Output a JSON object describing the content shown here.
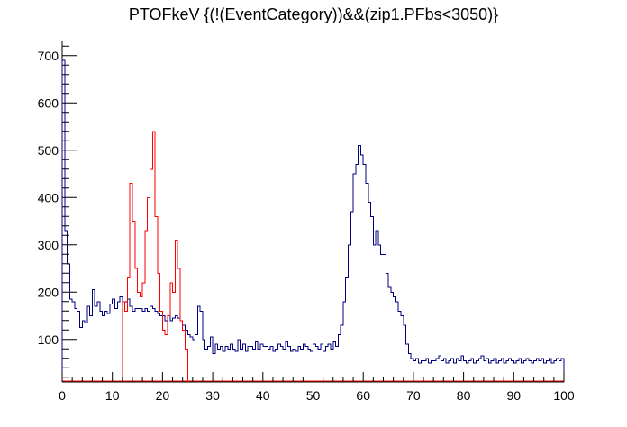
{
  "chart_data": {
    "type": "histogram",
    "title": "PTOFkeV {(!(EventCategory))&&(zip1.PFbs<3050)}",
    "xlabel": "",
    "ylabel": "",
    "xlim": [
      0,
      100
    ],
    "ylim": [
      10,
      730
    ],
    "grid": false,
    "legend": "none",
    "x_ticks": [
      0,
      10,
      20,
      30,
      40,
      50,
      60,
      70,
      80,
      90,
      100
    ],
    "y_ticks": [
      100,
      200,
      300,
      400,
      500,
      600,
      700
    ],
    "series": [
      {
        "color": "#000080",
        "x": [
          0.25,
          0.75,
          1.25,
          1.75,
          2.25,
          2.75,
          3.25,
          3.75,
          4.25,
          4.75,
          5.25,
          5.75,
          6.25,
          6.75,
          7.25,
          7.75,
          8.25,
          8.75,
          9.25,
          9.75,
          10.25,
          10.75,
          11.25,
          11.75,
          12.25,
          12.75,
          13.25,
          13.75,
          14.25,
          14.75,
          15.25,
          15.75,
          16.25,
          16.75,
          17.25,
          17.75,
          18.25,
          18.75,
          19.25,
          19.75,
          20.25,
          20.75,
          21.25,
          21.75,
          22.25,
          22.75,
          23.25,
          23.75,
          24.25,
          24.75,
          25.25,
          25.75,
          26.25,
          26.75,
          27.25,
          27.75,
          28.25,
          28.75,
          29.25,
          29.75,
          30.25,
          30.75,
          31.25,
          31.75,
          32.25,
          32.75,
          33.25,
          33.75,
          34.25,
          34.75,
          35.25,
          35.75,
          36.25,
          36.75,
          37.25,
          37.75,
          38.25,
          38.75,
          39.25,
          39.75,
          40.25,
          40.75,
          41.25,
          41.75,
          42.25,
          42.75,
          43.25,
          43.75,
          44.25,
          44.75,
          45.25,
          45.75,
          46.25,
          46.75,
          47.25,
          47.75,
          48.25,
          48.75,
          49.25,
          49.75,
          50.25,
          50.75,
          51.25,
          51.75,
          52.25,
          52.75,
          53.25,
          53.75,
          54.25,
          54.75,
          55.25,
          55.75,
          56.25,
          56.75,
          57.25,
          57.75,
          58.25,
          58.75,
          59.25,
          59.75,
          60.25,
          60.75,
          61.25,
          61.75,
          62.25,
          62.75,
          63.25,
          63.75,
          64.25,
          64.75,
          65.25,
          65.75,
          66.25,
          66.75,
          67.25,
          67.75,
          68.25,
          68.75,
          69.25,
          69.75,
          70.25,
          70.75,
          71.25,
          71.75,
          72.25,
          72.75,
          73.25,
          73.75,
          74.25,
          74.75,
          75.25,
          75.75,
          76.25,
          76.75,
          77.25,
          77.75,
          78.25,
          78.75,
          79.25,
          79.75,
          80.25,
          80.75,
          81.25,
          81.75,
          82.25,
          82.75,
          83.25,
          83.75,
          84.25,
          84.75,
          85.25,
          85.75,
          86.25,
          86.75,
          87.25,
          87.75,
          88.25,
          88.75,
          89.25,
          89.75,
          90.25,
          90.75,
          91.25,
          91.75,
          92.25,
          92.75,
          93.25,
          93.75,
          94.25,
          94.75,
          95.25,
          95.75,
          96.25,
          96.75,
          97.25,
          97.75,
          98.25,
          98.75,
          99.25,
          99.75
        ],
        "values": [
          690,
          330,
          260,
          185,
          180,
          165,
          160,
          125,
          140,
          135,
          170,
          150,
          205,
          170,
          180,
          160,
          150,
          160,
          155,
          175,
          185,
          165,
          180,
          190,
          175,
          180,
          185,
          170,
          160,
          165,
          165,
          165,
          160,
          165,
          160,
          170,
          165,
          160,
          155,
          150,
          150,
          140,
          150,
          140,
          145,
          150,
          145,
          140,
          130,
          120,
          110,
          105,
          100,
          110,
          170,
          160,
          100,
          80,
          85,
          105,
          70,
          90,
          80,
          85,
          75,
          85,
          80,
          90,
          80,
          75,
          100,
          80,
          90,
          75,
          85,
          85,
          80,
          95,
          80,
          90,
          85,
          85,
          80,
          85,
          75,
          80,
          90,
          85,
          80,
          95,
          85,
          75,
          80,
          75,
          85,
          80,
          90,
          85,
          80,
          75,
          90,
          85,
          80,
          90,
          75,
          85,
          90,
          80,
          95,
          85,
          110,
          130,
          180,
          230,
          300,
          370,
          450,
          470,
          510,
          490,
          470,
          430,
          390,
          360,
          300,
          330,
          300,
          280,
          280,
          240,
          210,
          200,
          190,
          180,
          160,
          150,
          130,
          90,
          70,
          60,
          55,
          60,
          50,
          55,
          55,
          60,
          50,
          55,
          55,
          60,
          65,
          55,
          60,
          50,
          55,
          60,
          50,
          60,
          55,
          65,
          55,
          50,
          55,
          60,
          50,
          55,
          60,
          65,
          55,
          60,
          50,
          55,
          60,
          50,
          55,
          60,
          50,
          55,
          60,
          55,
          50,
          55,
          60,
          50,
          55,
          60,
          55,
          50,
          55,
          60,
          55,
          60,
          50,
          55,
          60,
          50,
          55,
          60,
          55,
          60
        ]
      },
      {
        "color": "#ff0000",
        "x": [
          12.25,
          12.75,
          13.25,
          13.75,
          14.25,
          14.75,
          15.25,
          15.75,
          16.25,
          16.75,
          17.25,
          17.75,
          18.25,
          18.75,
          19.25,
          19.75,
          20.25,
          20.75,
          21.25,
          21.75,
          22.25,
          22.75,
          23.25,
          23.75,
          24.25,
          24.75
        ],
        "values": [
          180,
          160,
          230,
          430,
          350,
          250,
          200,
          190,
          220,
          330,
          400,
          460,
          540,
          360,
          240,
          160,
          120,
          110,
          150,
          220,
          200,
          310,
          250,
          140,
          120,
          80
        ]
      }
    ]
  }
}
